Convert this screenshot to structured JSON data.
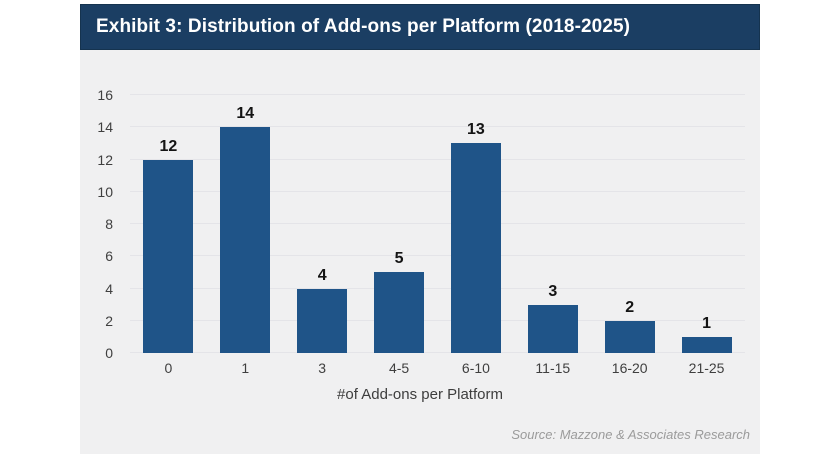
{
  "title_bar": {
    "text": "Exhibit 3: Distribution of Add-ons per Platform (2018-2025)"
  },
  "source": {
    "text": "Source: Mazzone & Associates Research"
  },
  "colors": {
    "title_bar_bg": "#1b3e63",
    "bar_fill": "#1f5488",
    "panel_bg": "#f0f0f1",
    "page_bg": "#ffffff",
    "gridline": "#e4e4e8",
    "axis_text": "#3f3f3f",
    "value_label_text": "#141414",
    "source_text": "#9b9b9b",
    "title_text": "#ffffff"
  },
  "chart_data": {
    "type": "bar",
    "categories": [
      "0",
      "1",
      "3",
      "4-5",
      "6-10",
      "11-15",
      "16-20",
      "21-25"
    ],
    "values": [
      12,
      14,
      4,
      5,
      13,
      3,
      2,
      1
    ],
    "title": "Exhibit 3: Distribution of Add-ons per Platform (2018-2025)",
    "xlabel": "#of Add-ons per Platform",
    "ylabel": "",
    "ylim": [
      0,
      16
    ],
    "ytick_step": 2,
    "grid": true,
    "legend": "none",
    "value_labels": true
  }
}
